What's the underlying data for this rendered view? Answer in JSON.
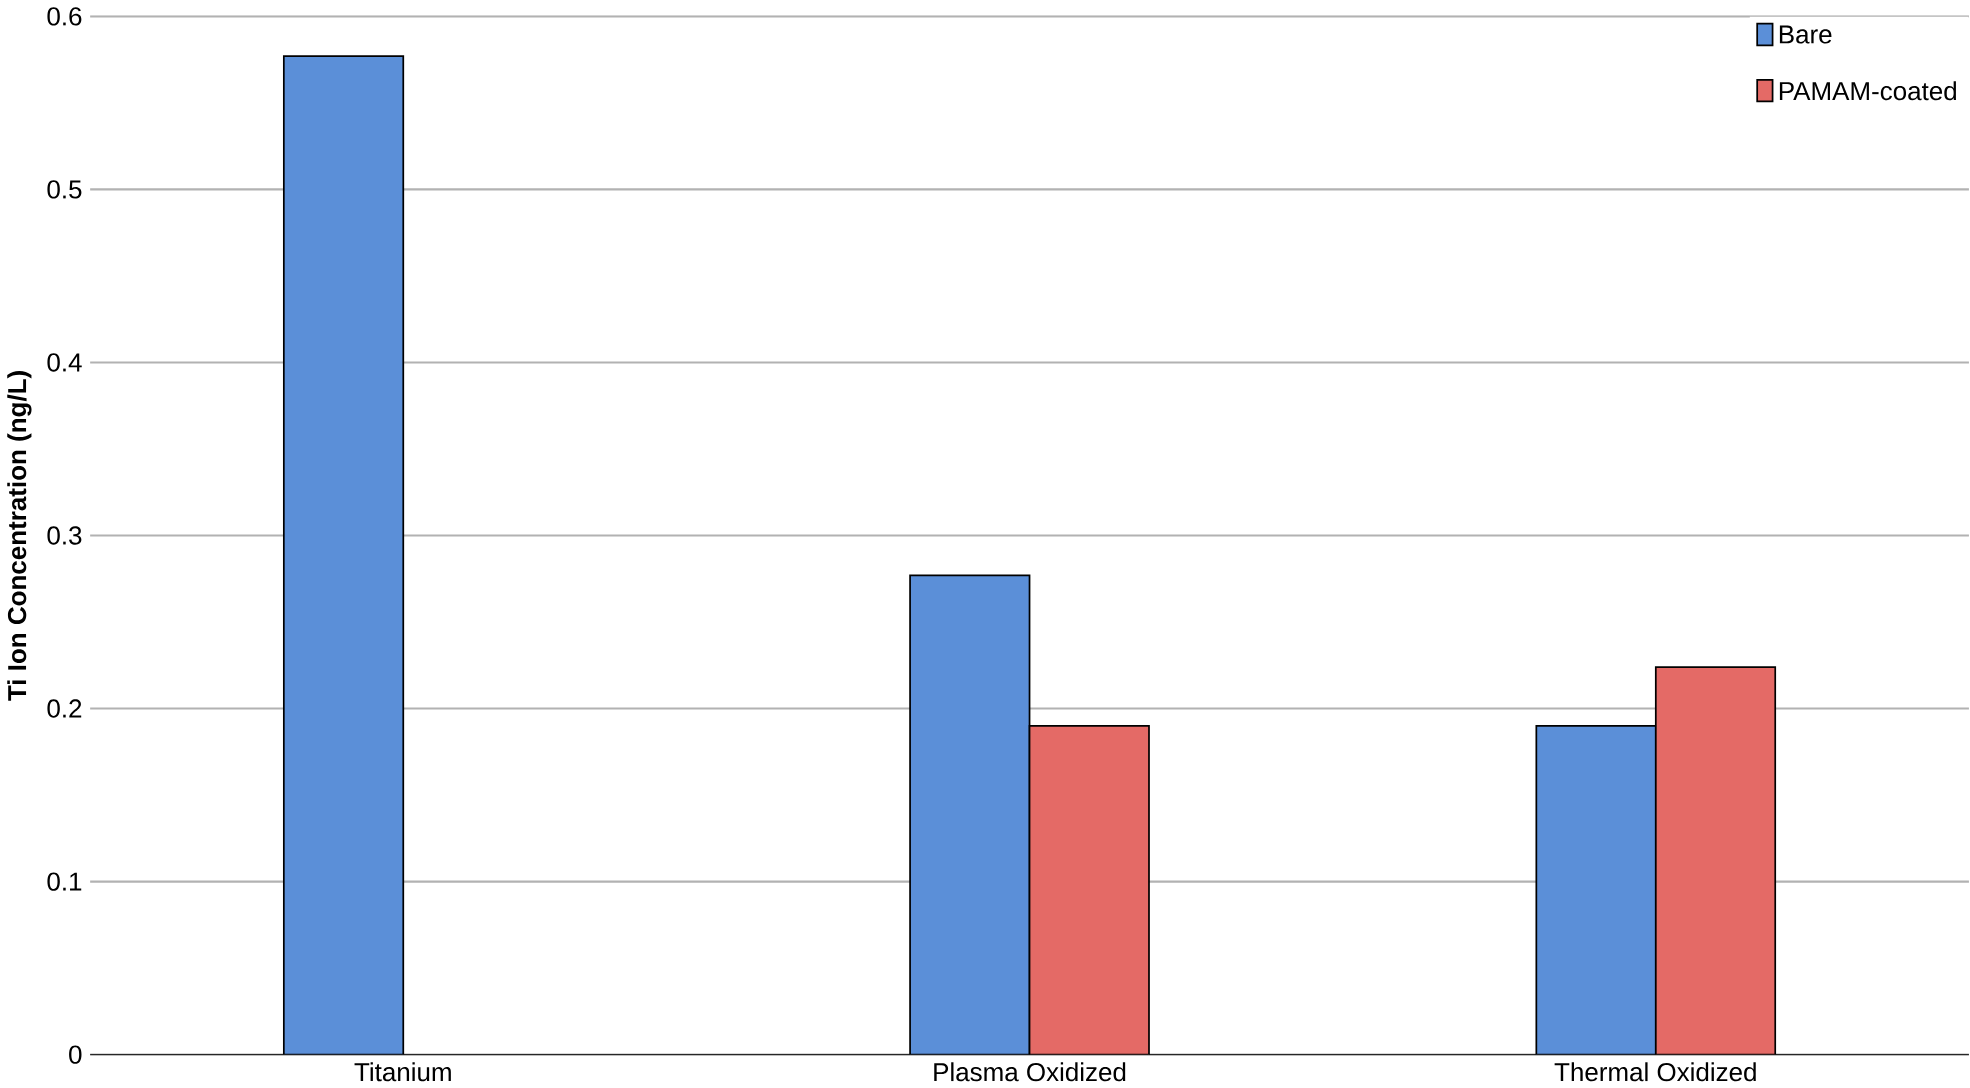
{
  "chart_data": {
    "type": "bar",
    "ylabel": "Ti Ion Concentration (ng/L)",
    "categories": [
      "Titanium",
      "Plasma Oxidized",
      "Thermal Oxidized"
    ],
    "series": [
      {
        "name": "Bare",
        "color": "#5b8fd8",
        "values": [
          0.577,
          0.277,
          0.19
        ]
      },
      {
        "name": "PAMAM-coated",
        "color": "#e46a66",
        "values": [
          null,
          0.19,
          0.224
        ]
      }
    ],
    "ylim": [
      0,
      0.6
    ],
    "yticks": [
      0,
      0.1,
      0.2,
      0.3,
      0.4,
      0.5,
      0.6
    ],
    "grid": "y",
    "legend": "top right"
  }
}
